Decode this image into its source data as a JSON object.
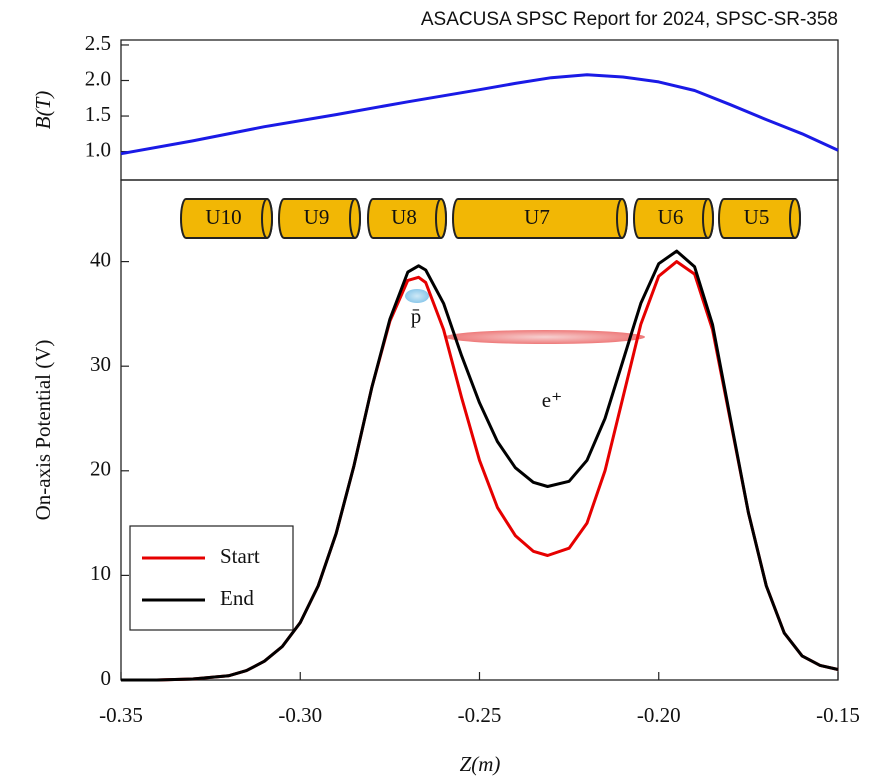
{
  "header": "ASACUSA SPSC Report for 2024, SPSC-SR-358",
  "chart_data": [
    {
      "type": "line",
      "ylabel": "B(T)",
      "x": [
        -0.35,
        -0.33,
        -0.31,
        -0.29,
        -0.27,
        -0.25,
        -0.24,
        -0.23,
        -0.22,
        -0.21,
        -0.2,
        -0.19,
        -0.18,
        -0.17,
        -0.16,
        -0.15
      ],
      "series": [
        {
          "color": "#1a1ae6",
          "values": [
            0.97,
            1.15,
            1.35,
            1.52,
            1.7,
            1.87,
            1.96,
            2.04,
            2.08,
            2.05,
            1.98,
            1.86,
            1.66,
            1.45,
            1.25,
            1.02
          ]
        }
      ],
      "xlim": [
        -0.35,
        -0.15
      ],
      "ylim": [
        0.6,
        2.57
      ],
      "yticks": [
        {
          "value": 1,
          "label": "1.0"
        },
        1.5,
        {
          "value": 2,
          "label": "2.0"
        },
        2.5
      ]
    },
    {
      "type": "line",
      "xlabel": "Z(m)",
      "ylabel": "On-axis Potential (V)",
      "x": [
        -0.35,
        -0.34,
        -0.33,
        -0.32,
        -0.315,
        -0.31,
        -0.305,
        -0.3,
        -0.295,
        -0.29,
        -0.285,
        -0.28,
        -0.275,
        -0.27,
        -0.267,
        -0.265,
        -0.26,
        -0.255,
        -0.25,
        -0.245,
        -0.24,
        -0.235,
        -0.231,
        -0.225,
        -0.22,
        -0.215,
        -0.21,
        -0.205,
        -0.2,
        -0.195,
        -0.19,
        -0.185,
        -0.18,
        -0.175,
        -0.17,
        -0.165,
        -0.16,
        -0.155,
        -0.15
      ],
      "series": [
        {
          "name": "Start",
          "color": "#e60000",
          "values": [
            0,
            0,
            0.1,
            0.4,
            0.9,
            1.8,
            3.2,
            5.5,
            9,
            14,
            20.5,
            28,
            34.3,
            38.2,
            38.5,
            38,
            33.5,
            27,
            21,
            16.5,
            13.8,
            12.3,
            11.9,
            12.6,
            15,
            20,
            27,
            34,
            38.6,
            40,
            38.8,
            33.5,
            24.8,
            16,
            9,
            4.5,
            2.3,
            1.4,
            1.0
          ]
        },
        {
          "name": "End",
          "color": "#000000",
          "values": [
            0,
            0,
            0.1,
            0.4,
            0.9,
            1.8,
            3.2,
            5.5,
            9,
            14,
            20.5,
            28,
            34.5,
            39,
            39.6,
            39.2,
            36,
            31,
            26.5,
            22.8,
            20.3,
            18.9,
            18.5,
            19,
            21,
            25,
            30.5,
            36,
            39.8,
            41,
            39.5,
            34,
            25,
            16,
            9,
            4.5,
            2.3,
            1.4,
            1.0
          ]
        }
      ],
      "xlim": [
        -0.35,
        -0.15
      ],
      "ylim": [
        0,
        47.8
      ],
      "xticks": [
        -0.35,
        {
          "value": -0.3,
          "label": "-0.30"
        },
        -0.25,
        {
          "value": -0.2,
          "label": "-0.20"
        },
        -0.15
      ],
      "yticks": [
        0,
        10,
        20,
        30,
        40
      ],
      "electrodes": [
        "U10",
        "U9",
        "U8",
        "U7",
        "U6",
        "U5"
      ],
      "annotations": [
        "p̄",
        "e⁺"
      ],
      "legend": "lower left"
    }
  ]
}
